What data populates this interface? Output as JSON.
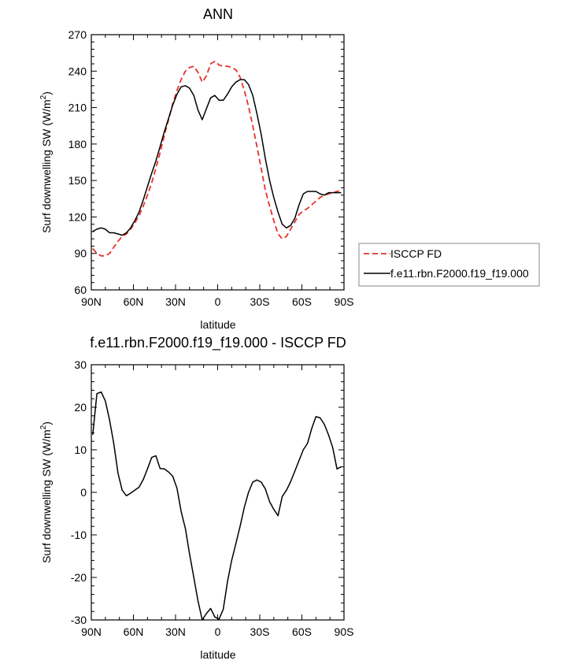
{
  "chart_data": [
    {
      "type": "line",
      "title": "ANN",
      "xlabel": "latitude",
      "ylabel": "Surf downwelling SW (W/m",
      "ylabel_sup": "2",
      "ylabel_close": ")",
      "xlim": [
        -90,
        90
      ],
      "ylim": [
        60,
        270
      ],
      "x_ticks": [
        -90,
        -60,
        -30,
        0,
        30,
        60,
        90
      ],
      "x_tick_labels": [
        "90N",
        "60N",
        "30N",
        "0",
        "30S",
        "60S",
        "90S"
      ],
      "y_ticks": [
        60,
        90,
        120,
        150,
        180,
        210,
        240,
        270
      ],
      "y_tick_labels": [
        "60",
        "90",
        "120",
        "150",
        "180",
        "210",
        "240",
        "270"
      ],
      "legend": {
        "placement": "right"
      },
      "x": [
        -89,
        -86,
        -83,
        -80,
        -77,
        -74,
        -71,
        -68,
        -65,
        -62,
        -59,
        -56,
        -53,
        -50,
        -47,
        -44,
        -41,
        -38,
        -35,
        -32,
        -29,
        -26,
        -23,
        -20,
        -17,
        -14,
        -11,
        -8,
        -5,
        -2,
        1,
        4,
        7,
        10,
        13,
        16,
        19,
        22,
        25,
        28,
        31,
        34,
        37,
        40,
        43,
        46,
        49,
        52,
        55,
        58,
        61,
        64,
        67,
        70,
        73,
        76,
        79,
        82,
        85,
        88
      ],
      "series": [
        {
          "name": "ISCCP FD",
          "color": "#e8312a",
          "dash": "dashed",
          "values": [
            94,
            90,
            88,
            88,
            90,
            95,
            100,
            104,
            106,
            110,
            115,
            121,
            129,
            138,
            148,
            160,
            173,
            187,
            200,
            213,
            224,
            233,
            240,
            243,
            244,
            239,
            231,
            236,
            246,
            248,
            245,
            244,
            244,
            243,
            241,
            235,
            224,
            211,
            195,
            178,
            160,
            142,
            129,
            117,
            106,
            102,
            104,
            110,
            116,
            122,
            125,
            127,
            130,
            133,
            136,
            138,
            139,
            140,
            141,
            142
          ]
        },
        {
          "name": "f.e11.rbn.F2000.f19_f19.000",
          "color": "#000000",
          "dash": "solid",
          "values": [
            108,
            110,
            111,
            110,
            107,
            107,
            106,
            105,
            107,
            111,
            117,
            124,
            134,
            145,
            156,
            166,
            178,
            190,
            201,
            212,
            221,
            227,
            228,
            226,
            220,
            208,
            200,
            209,
            218,
            220,
            216,
            216,
            221,
            227,
            231,
            233,
            233,
            229,
            220,
            205,
            188,
            168,
            150,
            136,
            124,
            114,
            111,
            113,
            119,
            130,
            139,
            141,
            141,
            141,
            139,
            138,
            140,
            140,
            140,
            140
          ]
        }
      ]
    },
    {
      "type": "line",
      "title": "f.e11.rbn.F2000.f19_f19.000 - ISCCP FD",
      "xlabel": "latitude",
      "ylabel": "Surf downwelling SW (W/m",
      "ylabel_sup": "2",
      "ylabel_close": ")",
      "xlim": [
        -90,
        90
      ],
      "ylim": [
        -30,
        30
      ],
      "x_ticks": [
        -90,
        -60,
        -30,
        0,
        30,
        60,
        90
      ],
      "x_tick_labels": [
        "90N",
        "60N",
        "30N",
        "0",
        "30S",
        "60S",
        "90S"
      ],
      "y_ticks": [
        -30,
        -20,
        -10,
        0,
        10,
        20,
        30
      ],
      "y_tick_labels": [
        "-30",
        "-20",
        "-10",
        "0",
        "10",
        "20",
        "30"
      ],
      "x": [
        -89,
        -86,
        -83,
        -80,
        -77,
        -74,
        -71,
        -68,
        -65,
        -62,
        -59,
        -56,
        -53,
        -50,
        -47,
        -44,
        -41,
        -38,
        -35,
        -32,
        -29,
        -26,
        -23,
        -20,
        -17,
        -14,
        -11,
        -8,
        -5,
        -2,
        1,
        4,
        7,
        10,
        13,
        16,
        19,
        22,
        25,
        28,
        31,
        34,
        37,
        40,
        43,
        46,
        49,
        52,
        55,
        58,
        61,
        64,
        67,
        70,
        73,
        76,
        79,
        82,
        85,
        88
      ],
      "series": [
        {
          "name": "",
          "color": "#000000",
          "dash": "solid",
          "values": [
            13.5,
            23.2,
            23.6,
            21.5,
            17.0,
            11.5,
            4.5,
            0.5,
            -0.8,
            -0.2,
            0.5,
            1.2,
            3.0,
            5.5,
            8.2,
            8.6,
            5.6,
            5.5,
            4.8,
            3.8,
            1.0,
            -4.5,
            -8.5,
            -14.5,
            -20.0,
            -25.5,
            -30.0,
            -28.5,
            -27.3,
            -29.3,
            -29.8,
            -27.5,
            -21.0,
            -16.0,
            -12.0,
            -8.0,
            -3.5,
            0.0,
            2.4,
            2.9,
            2.4,
            0.8,
            -2.2,
            -4.0,
            -5.5,
            -1.0,
            0.5,
            2.5,
            5.0,
            7.5,
            10.0,
            11.5,
            15.0,
            17.8,
            17.5,
            16.0,
            13.5,
            10.5,
            5.5,
            6.0
          ]
        }
      ]
    }
  ]
}
